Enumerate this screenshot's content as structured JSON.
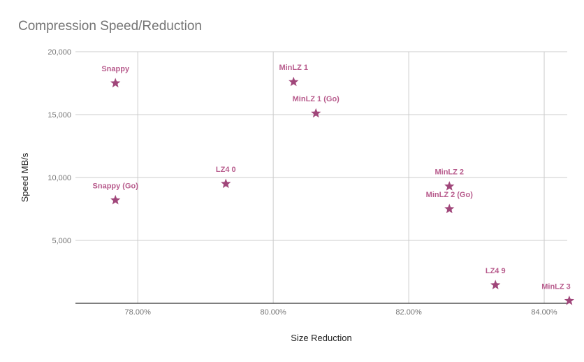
{
  "chart_data": {
    "type": "scatter",
    "title": "Compression Speed/Reduction",
    "xlabel": "Size Reduction",
    "ylabel": "Speed MB/s",
    "xlim": [
      0.7708,
      0.8434
    ],
    "ylim": [
      0,
      20000
    ],
    "x_ticks": [
      {
        "value": 0.78,
        "label": "78.00%"
      },
      {
        "value": 0.8,
        "label": "80.00%"
      },
      {
        "value": 0.82,
        "label": "82.00%"
      },
      {
        "value": 0.84,
        "label": "84.00%"
      }
    ],
    "y_ticks": [
      {
        "value": 5000,
        "label": "5,000"
      },
      {
        "value": 10000,
        "label": "10,000"
      },
      {
        "value": 15000,
        "label": "15,000"
      },
      {
        "value": 20000,
        "label": "20,000"
      }
    ],
    "grid": true,
    "marker": "star",
    "colors": {
      "marker": "#a0467a",
      "label": "#b85c8d",
      "grid": "#cccccc",
      "axis": "#333333"
    },
    "points": [
      {
        "label": "Snappy",
        "x": 0.7767,
        "y": 17500
      },
      {
        "label": "Snappy (Go)",
        "x": 0.7767,
        "y": 8200
      },
      {
        "label": "LZ4 0",
        "x": 0.793,
        "y": 9500
      },
      {
        "label": "MinLZ 1",
        "x": 0.803,
        "y": 17600
      },
      {
        "label": "MinLZ 1 (Go)",
        "x": 0.8063,
        "y": 15100
      },
      {
        "label": "MinLZ 2",
        "x": 0.826,
        "y": 9300
      },
      {
        "label": "MinLZ 2 (Go)",
        "x": 0.826,
        "y": 7500
      },
      {
        "label": "LZ4 9",
        "x": 0.8328,
        "y": 1450
      },
      {
        "label": "MinLZ 3",
        "x": 0.8437,
        "y": 200
      }
    ]
  }
}
